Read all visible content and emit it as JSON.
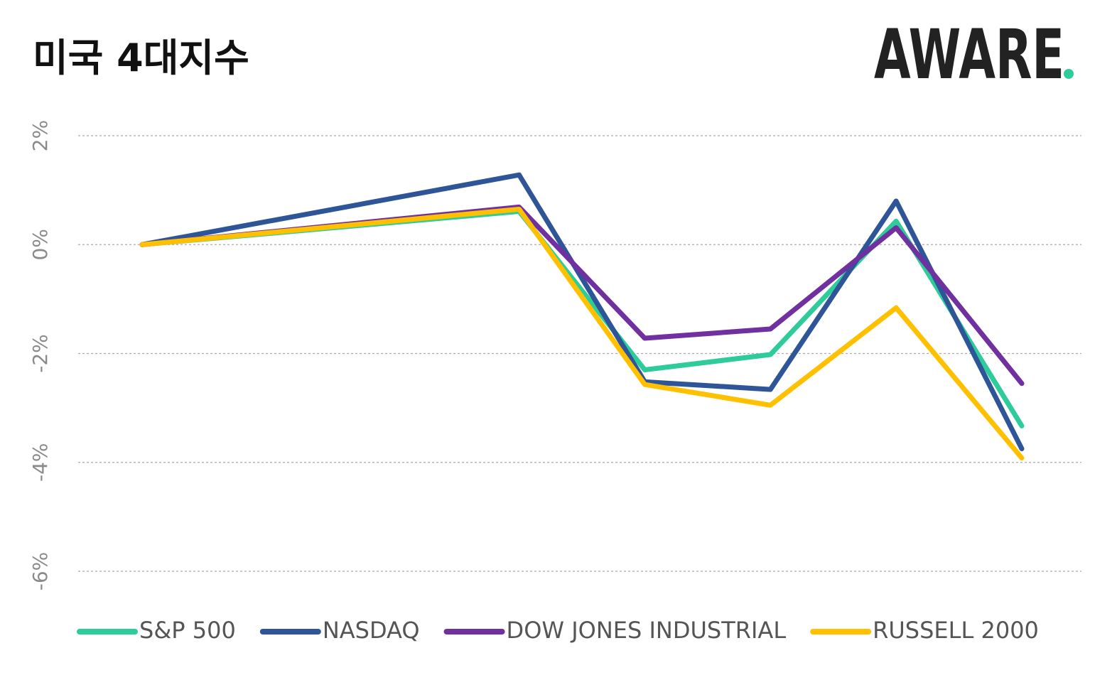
{
  "chart_data": {
    "type": "line",
    "title": "미국 4대지수",
    "logo": "AWARE",
    "x": [
      0,
      3,
      4,
      5,
      6,
      7
    ],
    "xlim": [
      0,
      7
    ],
    "ylim": [
      -6,
      2
    ],
    "yticks": [
      {
        "value": 2,
        "label": "2%"
      },
      {
        "value": 0,
        "label": "0%"
      },
      {
        "value": -2,
        "label": "-2%"
      },
      {
        "value": -4,
        "label": "-4%"
      },
      {
        "value": -6,
        "label": "-6%"
      }
    ],
    "grid": true,
    "legend": "bottom",
    "series": [
      {
        "name": "S&P 500",
        "color": "#2dcc9a",
        "values": [
          0,
          0.61,
          -2.3,
          -2.02,
          0.43,
          -3.33
        ]
      },
      {
        "name": "NASDAQ",
        "color": "#2e5597",
        "values": [
          0,
          1.28,
          -2.52,
          -2.66,
          0.8,
          -3.75
        ]
      },
      {
        "name": "DOW JONES INDUSTRIAL",
        "color": "#7030a0",
        "values": [
          0,
          0.69,
          -1.72,
          -1.55,
          0.31,
          -2.55
        ]
      },
      {
        "name": "RUSSELL 2000",
        "color": "#ffc000",
        "values": [
          0,
          0.65,
          -2.57,
          -2.95,
          -1.16,
          -3.92
        ]
      }
    ]
  }
}
